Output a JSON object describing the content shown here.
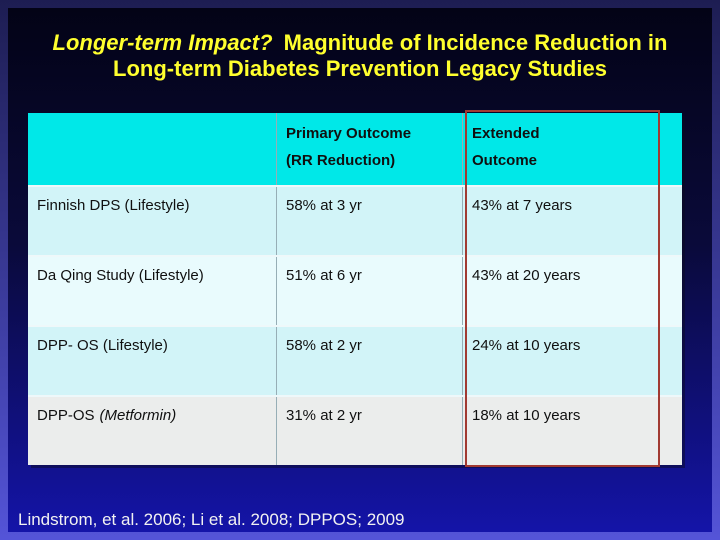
{
  "title": {
    "line1_italic": "Longer-term Impact?",
    "line1_rest": " Magnitude of Incidence Reduction in",
    "line2": "Long-term Diabetes Prevention Legacy Studies"
  },
  "table": {
    "header_study": "",
    "header_primary_line1": "Primary Outcome",
    "header_primary_line2": "(RR Reduction)",
    "header_extended_line1": "Extended",
    "header_extended_line2": "Outcome",
    "rows": [
      {
        "study": "Finnish DPS (Lifestyle)",
        "study_note": "",
        "primary": "58% at 3 yr",
        "extended": "43% at 7 years"
      },
      {
        "study": "Da Qing Study (Lifestyle)",
        "study_note": "",
        "primary": "51% at 6 yr",
        "extended": "43% at 20 years"
      },
      {
        "study": "DPP- OS (Lifestyle)",
        "study_note": "",
        "primary": "58% at 2 yr",
        "extended": "24% at 10 years"
      },
      {
        "study": "DPP-OS",
        "study_note": "(Metformin)",
        "primary": "31% at 2 yr",
        "extended": "18% at 10 years"
      }
    ]
  },
  "citation": "Lindstrom, et al. 2006; Li et al. 2008; DPPOS; 2009",
  "colors": {
    "title_yellow": "#ffff2e",
    "header_cyan": "#00e8e8",
    "row_cyan": "#d2f4f8",
    "row_pale": "#e9fbfd",
    "row_gray": "#ebedec",
    "highlight_red": "#a13a32",
    "divider_gray": "#96aeb6",
    "bg_top": "#030316",
    "bg_bottom": "#1414a8",
    "frame_top": "#1d1d52",
    "frame_bottom": "#5454d8",
    "citation_white": "#f2f2f2",
    "text_black": "#101010"
  }
}
